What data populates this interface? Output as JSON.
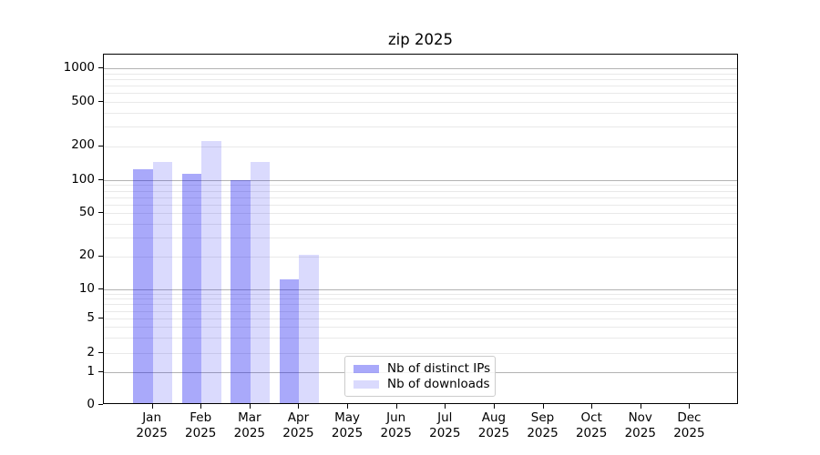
{
  "chart_data": {
    "type": "bar",
    "title": "zip 2025",
    "categories": [
      "Jan 2025",
      "Feb 2025",
      "Mar 2025",
      "Apr 2025",
      "May 2025",
      "Jun 2025",
      "Jul 2025",
      "Aug 2025",
      "Sep 2025",
      "Oct 2025",
      "Nov 2025",
      "Dec 2025"
    ],
    "series": [
      {
        "name": "Nb of distinct IPs",
        "color": "rgba(10,10,240,0.35)",
        "values": [
          120,
          110,
          97,
          12,
          null,
          null,
          null,
          null,
          null,
          null,
          null,
          null
        ]
      },
      {
        "name": "Nb of downloads",
        "color": "rgba(10,10,240,0.15)",
        "values": [
          140,
          215,
          140,
          20,
          null,
          null,
          null,
          null,
          null,
          null,
          null,
          null
        ]
      }
    ],
    "yticks": [
      0,
      1,
      2,
      5,
      10,
      20,
      50,
      100,
      200,
      500,
      1000
    ],
    "xlabel": "",
    "ylabel": "",
    "yscale": "symlog",
    "ylim": [
      0,
      1000
    ],
    "grid": true,
    "legend_position": "lower center",
    "colors": {
      "bar_distinct_ips": "#a6a6f7",
      "bar_downloads": "#d9d9fb",
      "grid_major": "#b3b3b3",
      "grid_minor": "#e9e9e9",
      "axis": "#000000"
    }
  }
}
